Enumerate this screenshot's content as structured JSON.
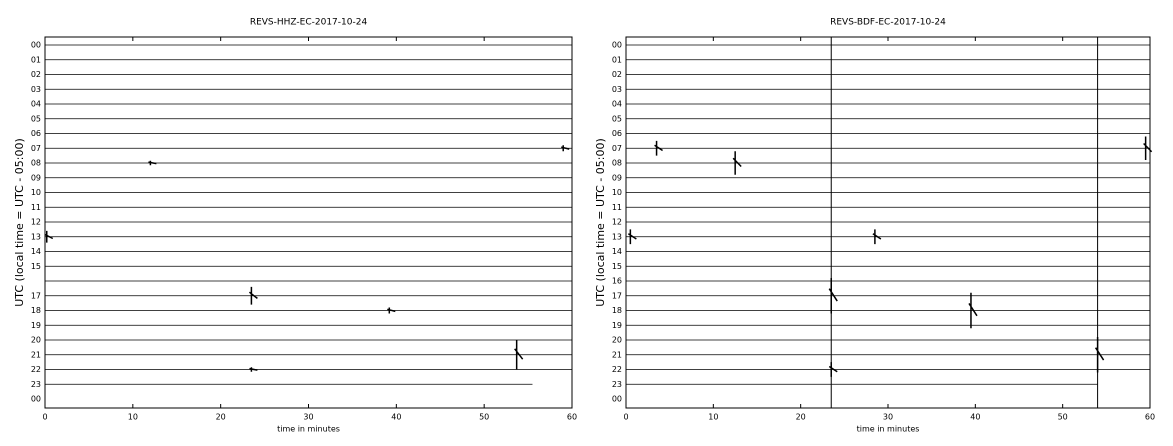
{
  "chart_data": [
    {
      "type": "helicorder",
      "title": "REVS-HHZ-EC-2017-10-24",
      "xlabel": "time in minutes",
      "ylabel": "UTC (local time = UTC - 05:00)",
      "categories": [
        "00",
        "01",
        "02",
        "03",
        "04",
        "05",
        "06",
        "07",
        "08",
        "09",
        "10",
        "11",
        "12",
        "13",
        "14",
        "15",
        null,
        "17",
        "18",
        "19",
        "20",
        "21",
        "22",
        "23",
        "00"
      ],
      "xlim": [
        0,
        60
      ],
      "xticks": [
        0,
        10,
        20,
        30,
        40,
        50,
        60
      ],
      "last_trace_end": 55.5,
      "events": [
        {
          "row": 13,
          "minute": 0.2,
          "amplitude": 0.4
        },
        {
          "row": 17,
          "minute": 23.5,
          "amplitude": 0.6
        },
        {
          "row": 21,
          "minute": 53.7,
          "amplitude": 1.0
        },
        {
          "row": 7,
          "minute": 59,
          "amplitude": 0.2
        },
        {
          "row": 18,
          "minute": 39.2,
          "amplitude": 0.2
        },
        {
          "row": 22,
          "minute": 23.5,
          "amplitude": 0.15
        },
        {
          "row": 8,
          "minute": 12,
          "amplitude": 0.15
        }
      ],
      "vlines": []
    },
    {
      "type": "helicorder",
      "title": "REVS-BDF-EC-2017-10-24",
      "xlabel": "time in minutes",
      "ylabel": "UTC (local time = UTC - 05:00)",
      "categories": [
        "00",
        "01",
        "02",
        "03",
        "04",
        "05",
        "06",
        "07",
        "08",
        "09",
        "10",
        "11",
        "12",
        "13",
        "14",
        "15",
        "16",
        "17",
        "18",
        "19",
        "20",
        "21",
        "22",
        "23",
        "00"
      ],
      "xlim": [
        0,
        60
      ],
      "xticks": [
        0,
        10,
        20,
        30,
        40,
        50,
        60
      ],
      "last_trace_end": 54,
      "events": [
        {
          "row": 7,
          "minute": 59.5,
          "amplitude": 0.8
        },
        {
          "row": 7,
          "minute": 3.5,
          "amplitude": 0.5
        },
        {
          "row": 8,
          "minute": 12.5,
          "amplitude": 0.8
        },
        {
          "row": 13,
          "minute": 0.5,
          "amplitude": 0.5
        },
        {
          "row": 13,
          "minute": 28.5,
          "amplitude": 0.5
        },
        {
          "row": 17,
          "minute": 23.5,
          "amplitude": 1.2
        },
        {
          "row": 18,
          "minute": 39.5,
          "amplitude": 1.2
        },
        {
          "row": 21,
          "minute": 54,
          "amplitude": 1.2
        },
        {
          "row": 22,
          "minute": 23.5,
          "amplitude": 0.5
        }
      ],
      "vlines": [
        23.5,
        54
      ]
    }
  ]
}
